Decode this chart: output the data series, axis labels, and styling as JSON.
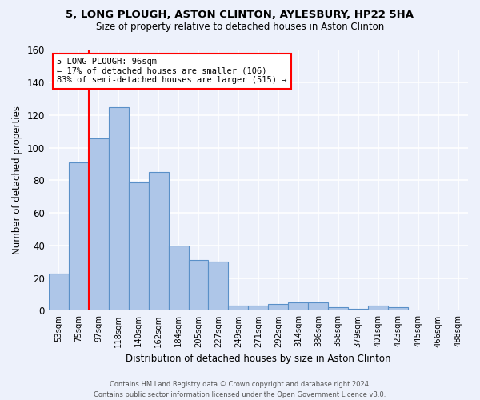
{
  "title1": "5, LONG PLOUGH, ASTON CLINTON, AYLESBURY, HP22 5HA",
  "title2": "Size of property relative to detached houses in Aston Clinton",
  "xlabel": "Distribution of detached houses by size in Aston Clinton",
  "ylabel": "Number of detached properties",
  "bins": [
    "53sqm",
    "75sqm",
    "97sqm",
    "118sqm",
    "140sqm",
    "162sqm",
    "184sqm",
    "205sqm",
    "227sqm",
    "249sqm",
    "271sqm",
    "292sqm",
    "314sqm",
    "336sqm",
    "358sqm",
    "379sqm",
    "401sqm",
    "423sqm",
    "445sqm",
    "466sqm",
    "488sqm"
  ],
  "values": [
    23,
    91,
    106,
    125,
    79,
    85,
    40,
    31,
    30,
    3,
    3,
    4,
    5,
    5,
    2,
    1,
    3,
    2,
    0,
    0,
    0
  ],
  "bar_color": "#aec6e8",
  "bar_edge_color": "#5a90c8",
  "red_line_x": 1.5,
  "annotation_text": "5 LONG PLOUGH: 96sqm\n← 17% of detached houses are smaller (106)\n83% of semi-detached houses are larger (515) →",
  "background_color": "#edf1fb",
  "plot_bg_color": "#edf1fb",
  "grid_color": "#ffffff",
  "ylim": [
    0,
    160
  ],
  "yticks": [
    0,
    20,
    40,
    60,
    80,
    100,
    120,
    140,
    160
  ],
  "footer": "Contains HM Land Registry data © Crown copyright and database right 2024.\nContains public sector information licensed under the Open Government Licence v3.0."
}
